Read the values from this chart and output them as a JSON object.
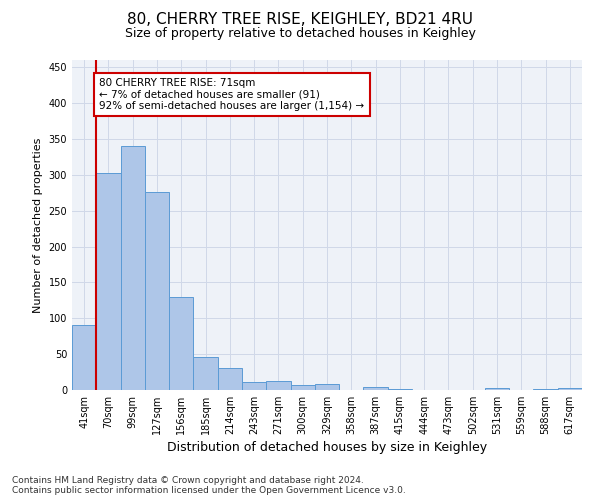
{
  "title1": "80, CHERRY TREE RISE, KEIGHLEY, BD21 4RU",
  "title2": "Size of property relative to detached houses in Keighley",
  "xlabel": "Distribution of detached houses by size in Keighley",
  "ylabel": "Number of detached properties",
  "categories": [
    "41sqm",
    "70sqm",
    "99sqm",
    "127sqm",
    "156sqm",
    "185sqm",
    "214sqm",
    "243sqm",
    "271sqm",
    "300sqm",
    "329sqm",
    "358sqm",
    "387sqm",
    "415sqm",
    "444sqm",
    "473sqm",
    "502sqm",
    "531sqm",
    "559sqm",
    "588sqm",
    "617sqm"
  ],
  "values": [
    91,
    303,
    340,
    276,
    130,
    46,
    31,
    11,
    12,
    7,
    9,
    0,
    4,
    1,
    0,
    0,
    0,
    3,
    0,
    2,
    3
  ],
  "bar_color": "#aec6e8",
  "bar_edge_color": "#5b9bd5",
  "property_line_color": "#cc0000",
  "annotation_text": "80 CHERRY TREE RISE: 71sqm\n← 7% of detached houses are smaller (91)\n92% of semi-detached houses are larger (1,154) →",
  "annotation_box_color": "#ffffff",
  "annotation_box_edge_color": "#cc0000",
  "ylim": [
    0,
    460
  ],
  "yticks": [
    0,
    50,
    100,
    150,
    200,
    250,
    300,
    350,
    400,
    450
  ],
  "grid_color": "#d0d8e8",
  "bg_color": "#eef2f8",
  "footer": "Contains HM Land Registry data © Crown copyright and database right 2024.\nContains public sector information licensed under the Open Government Licence v3.0.",
  "title1_fontsize": 11,
  "title2_fontsize": 9,
  "xlabel_fontsize": 9,
  "ylabel_fontsize": 8,
  "annotation_fontsize": 7.5,
  "footer_fontsize": 6.5,
  "tick_fontsize": 7
}
